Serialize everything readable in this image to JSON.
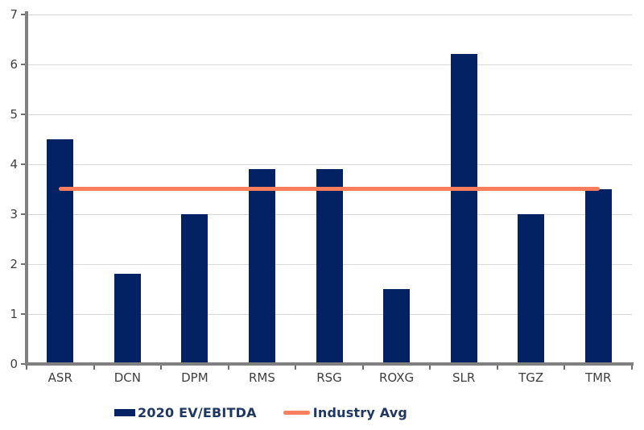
{
  "chart_data": {
    "type": "bar",
    "title": "",
    "xlabel": "",
    "ylabel": "",
    "categories": [
      "ASR",
      "DCN",
      "DPM",
      "RMS",
      "RSG",
      "ROXG",
      "SLR",
      "TGZ",
      "TMR"
    ],
    "series": [
      {
        "name": "2020 EV/EBITDA",
        "type": "bar",
        "color": "#032264",
        "values": [
          4.5,
          1.8,
          3.0,
          3.9,
          3.9,
          1.5,
          6.2,
          3.0,
          3.5
        ]
      },
      {
        "name": "Industry Avg",
        "type": "line",
        "color": "#f97e5d",
        "value": 3.5
      }
    ],
    "ylim": [
      0,
      7
    ],
    "yticks": [
      0,
      1,
      2,
      3,
      4,
      5,
      6,
      7
    ],
    "grid": true,
    "legend_position": "bottom",
    "colors": {
      "bar": "#032264",
      "line": "#f97e5d",
      "gridline": "#d9d9d9",
      "axis": "#808080",
      "tick_label": "#3f3f3f",
      "legend_text": "#1f3863",
      "background": "#ffffff"
    }
  }
}
